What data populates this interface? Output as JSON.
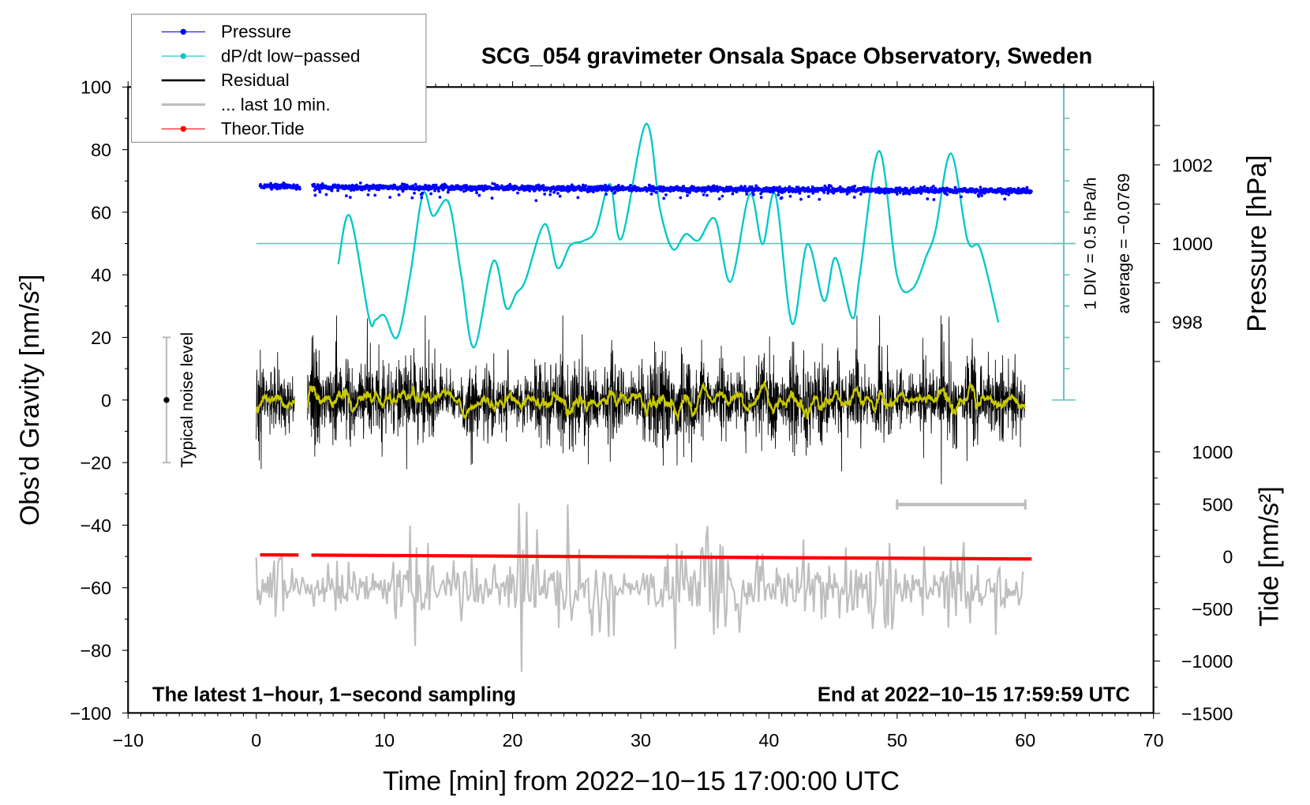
{
  "chart_data": {
    "type": "line",
    "title": "SCG_054 gravimeter Onsala Space Observatory, Sweden",
    "xlabel": "Time [min] from 2022−10−15 17:00:00 UTC",
    "ylabel": "Obs’d Gravity [nm/s²]",
    "ylabel_right_top": "Pressure [hPa]",
    "ylabel_right_bottom": "Tide [nm/s²]",
    "xlim": [
      -10,
      70
    ],
    "ylim": [
      -100,
      100
    ],
    "pressure_lim": [
      996,
      1004
    ],
    "tide_lim": [
      -1500,
      1000
    ],
    "x_ticks": [
      "−10",
      "0",
      "10",
      "20",
      "30",
      "40",
      "50",
      "60",
      "70"
    ],
    "x_tick_values": [
      -10,
      0,
      10,
      20,
      30,
      40,
      50,
      60,
      70
    ],
    "y_ticks": [
      "100",
      "80",
      "60",
      "40",
      "20",
      "0",
      "−20",
      "−40",
      "−60",
      "−80",
      "−100"
    ],
    "y_tick_values": [
      100,
      80,
      60,
      40,
      20,
      0,
      -20,
      -40,
      -60,
      -80,
      -100
    ],
    "pressure_ticks": [
      "1002",
      "1000",
      "998"
    ],
    "pressure_tick_values": [
      1002,
      1000,
      998
    ],
    "tide_ticks": [
      "1000",
      "500",
      "0",
      "−500",
      "−1000",
      "−1500"
    ],
    "tide_tick_values": [
      1000,
      500,
      0,
      -500,
      -1000,
      -1500
    ],
    "legend": {
      "placement": "top-left",
      "entries": [
        {
          "label": "Pressure",
          "color": "#0000ff",
          "marker": true
        },
        {
          "label": "dP/dt low−passed",
          "color": "#00c8c8",
          "marker": true
        },
        {
          "label": "Residual",
          "color": "#000000",
          "marker": false
        },
        {
          "label": "... last 10 min.",
          "color": "#bebebe",
          "marker": false
        },
        {
          "label": "Theor.Tide",
          "color": "#ff0000",
          "marker": true
        }
      ]
    },
    "annotations": {
      "left_bottom": "The latest 1−hour, 1−second sampling",
      "right_bottom": "End at 2022−10−15 17:59:59 UTC",
      "noise_label": "Typical noise level",
      "noise_level_range": [
        -20,
        20
      ],
      "div_label": "1 DIV = 0.5 hPa/h",
      "average_label": "average = −0.0769",
      "last10_scale_bar_minutes": [
        50,
        60
      ]
    },
    "series": [
      {
        "name": "Pressure",
        "unit": "hPa",
        "segments_min": [
          [
            0.3,
            3.4
          ],
          [
            4.4,
            60.5
          ]
        ],
        "mean_start": 1001.45,
        "mean_end": 1001.33,
        "scatter": 0.06,
        "color": "#0000ff"
      },
      {
        "name": "dP/dt low-passed",
        "unit": "hPa/h",
        "div": 0.5,
        "x": [
          6.4,
          7.3,
          8.8,
          9.3,
          10,
          11,
          12,
          13,
          13.8,
          15,
          16,
          17,
          18.5,
          19.5,
          20.3,
          21,
          22.5,
          23.5,
          24.5,
          25.5,
          26.5,
          27.6,
          28.5,
          30.4,
          31.5,
          32.5,
          33.5,
          34.5,
          35.8,
          37,
          38.5,
          39.5,
          40.5,
          41.8,
          43,
          44.3,
          45.2,
          46.5,
          47.1,
          48.6,
          50,
          51.2,
          52.3,
          53,
          54.2,
          55.5,
          56.5,
          57.9
        ],
        "values": [
          -0.33,
          0.44,
          -1.19,
          -1.22,
          -1.15,
          -1.5,
          -0.52,
          0.79,
          0.44,
          0.66,
          -0.52,
          -1.66,
          -0.28,
          -1.03,
          -0.79,
          -0.59,
          0.31,
          -0.39,
          -0.03,
          0.04,
          0.21,
          0.95,
          0.08,
          1.91,
          0.55,
          -0.09,
          0.15,
          0.05,
          0.39,
          -0.61,
          0.79,
          -0.01,
          0.78,
          -1.28,
          -0.01,
          -0.92,
          -0.23,
          -1.19,
          -0.48,
          1.48,
          -0.52,
          -0.72,
          -0.19,
          0.21,
          1.44,
          0.05,
          -0.09,
          -1.26
        ],
        "color": "#00c8c8"
      },
      {
        "name": "Residual",
        "unit": "nm/s²",
        "segments_min": [
          [
            0,
            3.0
          ],
          [
            4.0,
            60
          ]
        ],
        "std": 7,
        "max_abs": 27,
        "color": "#000000",
        "smoothed_color": "#c8c800"
      },
      {
        "name": "... last 10 min.",
        "offset": -60,
        "source_minutes": [
          50,
          60
        ],
        "color": "#bebebe"
      },
      {
        "name": "Theor.Tide",
        "unit": "nm/s²",
        "segments_min": [
          [
            0.3,
            3.3
          ],
          [
            4.3,
            60.5
          ]
        ],
        "start": 16,
        "end": -24,
        "color": "#ff0000"
      }
    ]
  }
}
